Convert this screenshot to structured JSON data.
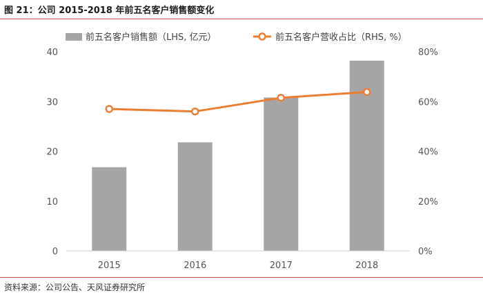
{
  "header": {
    "title": "图 21：公司 2015-2018 年前五名客户销售额变化"
  },
  "footer": {
    "source": "资料来源：公司公告、天风证券研究所"
  },
  "chart_data": {
    "type": "bar+line",
    "categories": [
      "2015",
      "2016",
      "2017",
      "2018"
    ],
    "series": [
      {
        "name": "前五名客户销售额（LHS, 亿元）",
        "type": "bar",
        "axis": "left",
        "values": [
          16.8,
          21.8,
          30.8,
          38.2
        ],
        "color": "#a5a5a5"
      },
      {
        "name": "前五名客户营收占比（RHS, %）",
        "type": "line",
        "axis": "right",
        "values": [
          57,
          56,
          61.5,
          63.8
        ],
        "color": "#ed7d31"
      }
    ],
    "left_axis": {
      "ylim": [
        0,
        40
      ],
      "ticks": [
        0,
        10,
        20,
        30,
        40
      ],
      "tick_labels": [
        "0",
        "10",
        "20",
        "30",
        "40"
      ]
    },
    "right_axis": {
      "ylim": [
        0,
        80
      ],
      "ticks": [
        0,
        20,
        40,
        60,
        80
      ],
      "tick_labels": [
        "0%",
        "20%",
        "40%",
        "60%",
        "80%"
      ]
    },
    "legend": "top",
    "grid": false
  }
}
